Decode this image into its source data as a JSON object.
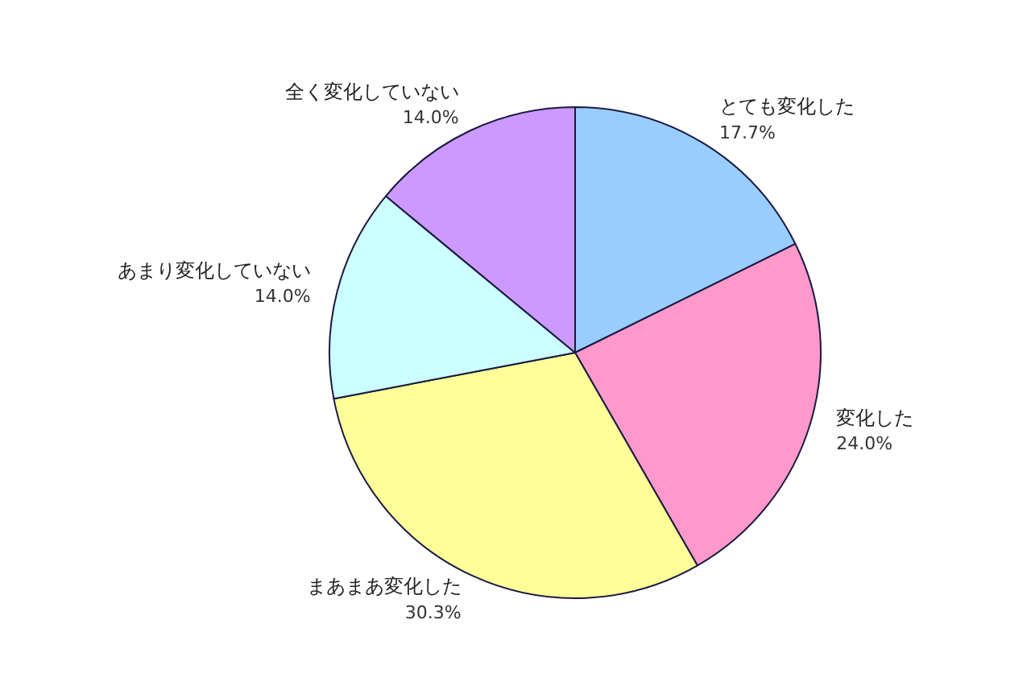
{
  "chart_data": {
    "type": "pie",
    "categories": [
      "とても変化した",
      "変化した",
      "まあまあ変化した",
      "あまり変化していない",
      "全く変化していない"
    ],
    "values": [
      17.7,
      24.0,
      30.3,
      14.0,
      14.0
    ],
    "colors": [
      "#99ccff",
      "#ff99cc",
      "#ffff99",
      "#ccffff",
      "#cc99ff"
    ],
    "value_labels": [
      "17.7%",
      "24.0%",
      "30.3%",
      "14.0%",
      "14.0%"
    ]
  }
}
